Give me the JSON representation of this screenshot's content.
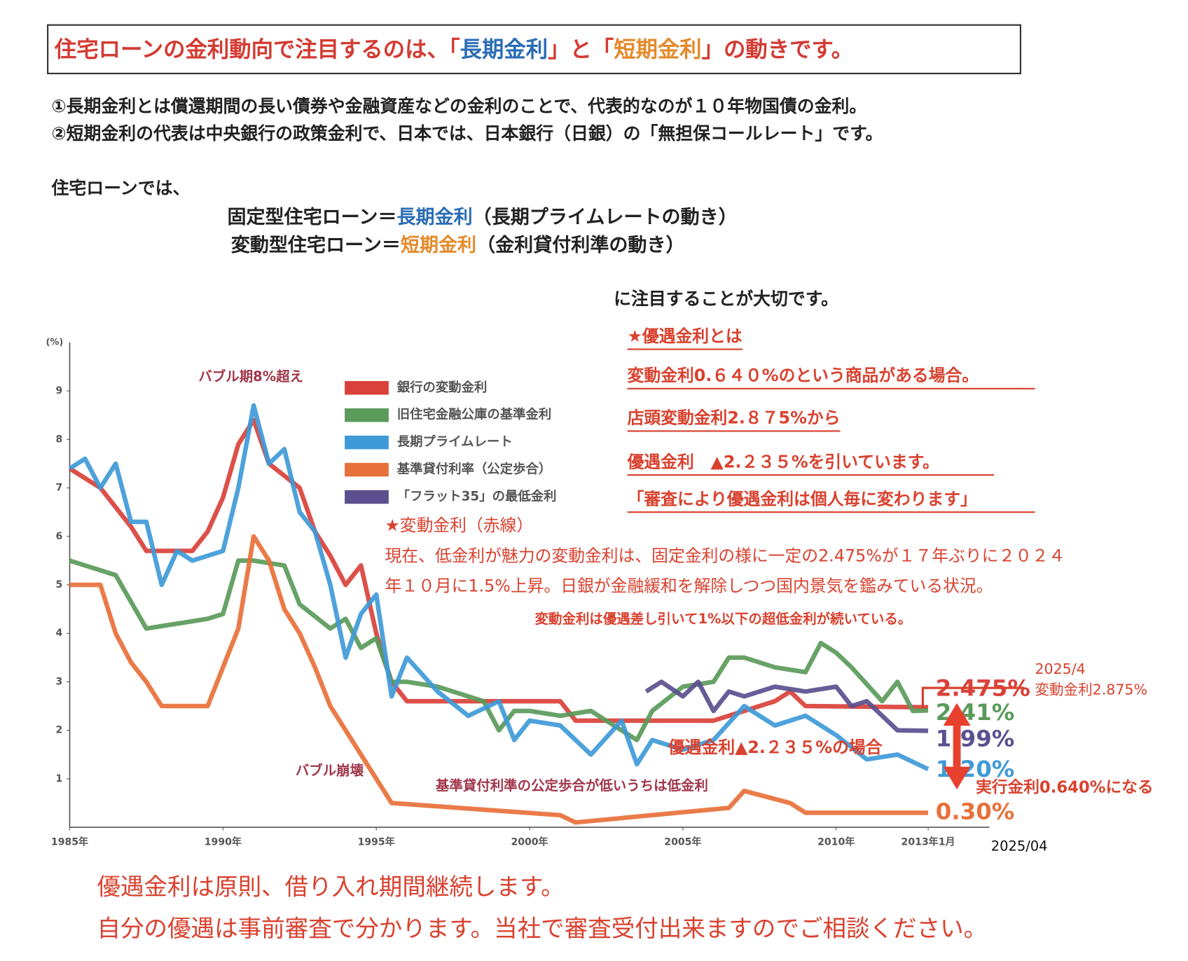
{
  "header": {
    "title_parts": [
      "住宅ローンの金利動向で注目するのは、「",
      "長期金利",
      "」と「",
      "短期金利",
      "」の動きです。"
    ]
  },
  "intro": {
    "lines": [
      "①長期金利とは償還期間の長い債券や金融資産などの金利のことで、代表的なのが１０年物国債の金利。",
      "②短期金利の代表は中央銀行の政策金利で、日本では、日本銀行（日銀）の「無担保コールレート」です。"
    ]
  },
  "loan": {
    "lead": "住宅ローンでは、",
    "rows": [
      [
        "固定型住宅ローン＝",
        "長期金利",
        "（長期プライムレートの動き）"
      ],
      [
        "変動型住宅ローン＝",
        "短期金利",
        "（金利貸付利準の動き）"
      ]
    ],
    "closing": "に注目することが大切です。"
  },
  "notes": {
    "items": [
      "★優遇金利とは",
      "変動金利0.６４０%のという商品がある場合。",
      "店頭変動金利2.８７5%から",
      "優遇金利　▲2.２３５%を引いています。",
      "「審査により優遇金利は個人毎に変わります」"
    ]
  },
  "variable": {
    "title": "★変動金利（赤線）",
    "lines": [
      "現在、低金利が魅力の変動金利は、固定金利の様に一定の2.475%が１７年ぶりに２０２４",
      "年１０月に1.5%上昇。日銀が金融緩和を解除しつつ国内景気を鑑みている状況。"
    ]
  },
  "footer": {
    "lines": [
      "優遇金利は原則、借り入れ期間継続します。",
      "自分の優遇は事前審査で分かります。当社で審査受付出来ますのでご相談ください。"
    ]
  },
  "chart_data": {
    "type": "line",
    "y_unit_label": "(%)",
    "xlim": [
      1985,
      2015
    ],
    "xticks": [
      {
        "value": 1985,
        "label": "1985年"
      },
      {
        "value": 1990,
        "label": "1990年"
      },
      {
        "value": 1995,
        "label": "1995年"
      },
      {
        "value": 2000,
        "label": "2000年"
      },
      {
        "value": 2005,
        "label": "2005年"
      },
      {
        "value": 2010,
        "label": "2010年"
      },
      {
        "value": 2013,
        "label": "2013年1月"
      }
    ],
    "ylim": [
      0,
      10
    ],
    "yticks": [
      1,
      2,
      3,
      4,
      5,
      6,
      7,
      8,
      9
    ],
    "grid": false,
    "series": [
      {
        "name": "銀行の変動金利",
        "color": "#d9413a",
        "end_label": "2.475%",
        "x": [
          1985,
          1986,
          1987,
          1987.5,
          1989,
          1989.5,
          1990,
          1990.5,
          1991,
          1991.5,
          1992.5,
          1993,
          1993.5,
          1994,
          1994.5,
          1995,
          1995.5,
          1996,
          2001,
          2001.5,
          2006,
          2007,
          2008,
          2008.5,
          2009,
          2013
        ],
        "values": [
          7.4,
          7.0,
          6.2,
          5.7,
          5.7,
          6.1,
          6.8,
          7.9,
          8.4,
          7.5,
          7.0,
          6.1,
          5.6,
          5.0,
          5.4,
          4.0,
          3.0,
          2.6,
          2.6,
          2.2,
          2.2,
          2.4,
          2.6,
          2.8,
          2.5,
          2.475
        ]
      },
      {
        "name": "旧住宅金融公庫の基準金利",
        "color": "#5a9a5a",
        "end_label": "2.41%",
        "x": [
          1985,
          1986.5,
          1987.5,
          1988.5,
          1989.5,
          1990,
          1990.5,
          1991,
          1992,
          1992.5,
          1993.5,
          1994,
          1994.5,
          1995,
          1995.5,
          1996,
          1997,
          1998.5,
          1999,
          1999.5,
          2000,
          2001,
          2002,
          2003,
          2003.5,
          2004,
          2005,
          2006,
          2006.5,
          2007,
          2008,
          2009,
          2009.5,
          2010,
          2010.5,
          2011.5,
          2012,
          2012.5,
          2013
        ],
        "values": [
          5.5,
          5.2,
          4.1,
          4.2,
          4.3,
          4.4,
          5.5,
          5.5,
          5.4,
          4.6,
          4.1,
          4.3,
          3.7,
          3.9,
          3.0,
          3.0,
          2.9,
          2.6,
          2.0,
          2.4,
          2.4,
          2.3,
          2.4,
          2.0,
          1.8,
          2.4,
          2.9,
          3.0,
          3.5,
          3.5,
          3.3,
          3.2,
          3.8,
          3.6,
          3.3,
          2.6,
          3.0,
          2.4,
          2.41
        ]
      },
      {
        "name": "長期プライムレート",
        "color": "#3f9ad8",
        "end_label": "1.20%",
        "x": [
          1985,
          1985.5,
          1986,
          1986.5,
          1987,
          1987.5,
          1988,
          1988.5,
          1989,
          1990,
          1990.5,
          1991,
          1991.5,
          1992,
          1992.5,
          1993,
          1993.5,
          1994,
          1994.5,
          1995,
          1995.5,
          1996,
          1997,
          1998,
          1999,
          1999.5,
          2000,
          2001,
          2002,
          2003,
          2003.5,
          2004,
          2005,
          2006,
          2007,
          2008,
          2009,
          2010,
          2011,
          2012,
          2013
        ],
        "values": [
          7.4,
          7.6,
          7.0,
          7.5,
          6.3,
          6.3,
          5.0,
          5.7,
          5.5,
          5.7,
          7.0,
          8.7,
          7.5,
          7.8,
          6.5,
          6.1,
          5.0,
          3.5,
          4.4,
          4.8,
          2.7,
          3.5,
          2.8,
          2.3,
          2.6,
          1.8,
          2.2,
          2.1,
          1.5,
          2.2,
          1.3,
          1.8,
          1.6,
          1.8,
          2.5,
          2.1,
          2.3,
          1.9,
          1.4,
          1.5,
          1.2
        ]
      },
      {
        "name": "基準貸付利率（公定歩合）",
        "color": "#e8703a",
        "end_label": "0.30%",
        "x": [
          1985,
          1986,
          1986.5,
          1987,
          1987.5,
          1988,
          1989.5,
          1990,
          1990.5,
          1991,
          1991.5,
          1992,
          1992.5,
          1993,
          1993.5,
          1995,
          1995.5,
          2001,
          2001.5,
          2006.5,
          2007,
          2008.5,
          2009,
          2013
        ],
        "values": [
          5.0,
          5.0,
          4.0,
          3.4,
          3.0,
          2.5,
          2.5,
          3.3,
          4.1,
          6.0,
          5.5,
          4.5,
          4.0,
          3.3,
          2.5,
          1.0,
          0.5,
          0.25,
          0.1,
          0.4,
          0.75,
          0.5,
          0.3,
          0.3
        ]
      },
      {
        "name": "「フラット35」の最低金利",
        "color": "#5b4f8f",
        "end_label": "1.99%",
        "x": [
          2003.8,
          2004.3,
          2005,
          2005.5,
          2006,
          2006.5,
          2007,
          2008,
          2009,
          2010,
          2010.5,
          2011,
          2012,
          2013
        ],
        "values": [
          2.8,
          3.0,
          2.7,
          3.0,
          2.4,
          2.8,
          2.7,
          2.9,
          2.8,
          2.9,
          2.5,
          2.6,
          2.0,
          1.99
        ]
      }
    ],
    "annotations": [
      "バブル期8%超え",
      "バブル崩壊",
      "基準貸付利準の公定歩合が低いうちは低金利",
      "変動金利は優遇差し引いて1%以下の超低金利が続いている。",
      "2025/4",
      "変動金利2.875%",
      "優遇金利▲2.２３５%の場合",
      "実行金利0.640%になる",
      "2025/04"
    ]
  }
}
